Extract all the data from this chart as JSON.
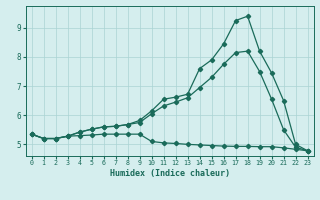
{
  "xlabel": "Humidex (Indice chaleur)",
  "ylabel": "",
  "background_color": "#d5eeee",
  "grid_color": "#aad4d4",
  "line_color": "#1a6b5a",
  "xlim": [
    -0.5,
    23.5
  ],
  "ylim": [
    4.6,
    9.75
  ],
  "xticks": [
    0,
    1,
    2,
    3,
    4,
    5,
    6,
    7,
    8,
    9,
    10,
    11,
    12,
    13,
    14,
    15,
    16,
    17,
    18,
    19,
    20,
    21,
    22,
    23
  ],
  "yticks": [
    5,
    6,
    7,
    8,
    9
  ],
  "series1_x": [
    0,
    1,
    2,
    3,
    4,
    5,
    6,
    7,
    8,
    9,
    10,
    11,
    12,
    13,
    14,
    15,
    16,
    17,
    18,
    19,
    20,
    21,
    22,
    23
  ],
  "series1_y": [
    5.35,
    5.2,
    5.2,
    5.28,
    5.3,
    5.32,
    5.35,
    5.35,
    5.35,
    5.35,
    5.1,
    5.05,
    5.03,
    5.0,
    4.98,
    4.96,
    4.94,
    4.93,
    4.93,
    4.92,
    4.92,
    4.88,
    4.83,
    4.78
  ],
  "series2_x": [
    0,
    1,
    2,
    3,
    4,
    5,
    6,
    7,
    8,
    9,
    10,
    11,
    12,
    13,
    14,
    15,
    16,
    17,
    18,
    19,
    20,
    21,
    22,
    23
  ],
  "series2_y": [
    5.35,
    5.2,
    5.2,
    5.28,
    5.42,
    5.52,
    5.6,
    5.62,
    5.68,
    5.75,
    6.05,
    6.32,
    6.45,
    6.6,
    6.95,
    7.3,
    7.75,
    8.15,
    8.2,
    7.5,
    6.55,
    5.5,
    4.9,
    4.78
  ],
  "series3_x": [
    0,
    1,
    2,
    3,
    4,
    5,
    6,
    7,
    8,
    9,
    10,
    11,
    12,
    13,
    14,
    15,
    16,
    17,
    18,
    19,
    20,
    21,
    22,
    23
  ],
  "series3_y": [
    5.35,
    5.2,
    5.2,
    5.28,
    5.42,
    5.52,
    5.6,
    5.62,
    5.68,
    5.82,
    6.15,
    6.55,
    6.62,
    6.72,
    7.6,
    7.9,
    8.45,
    9.25,
    9.4,
    8.2,
    7.45,
    6.5,
    5.0,
    4.78
  ]
}
